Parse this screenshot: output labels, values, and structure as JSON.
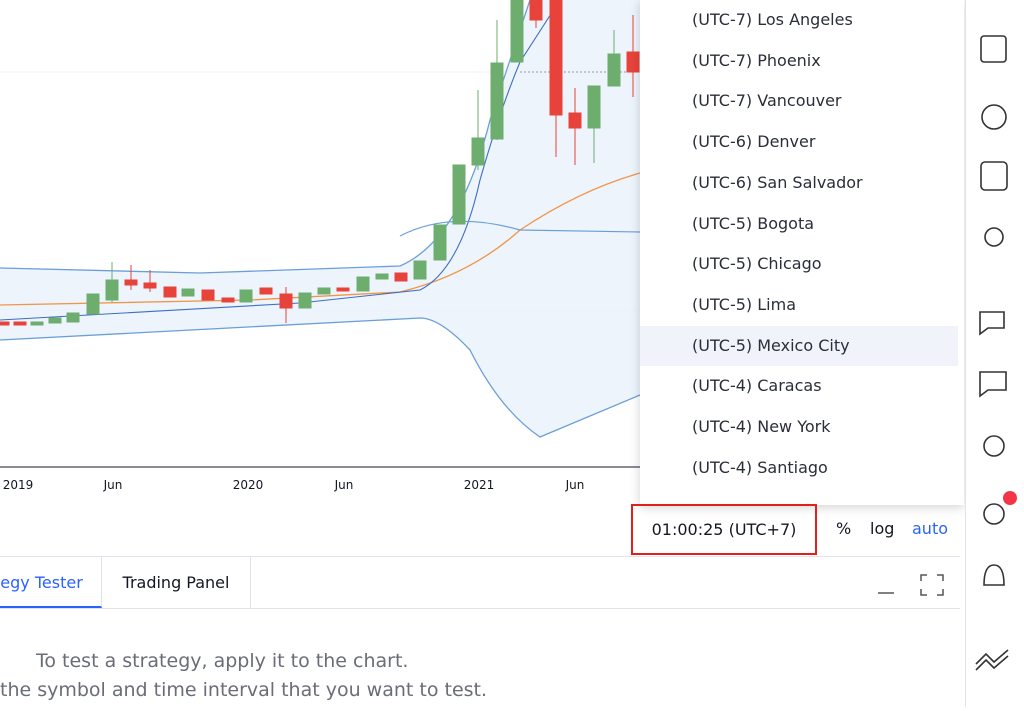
{
  "chart": {
    "x_labels": [
      "2019",
      "Jun",
      "2020",
      "Jun",
      "2021",
      "Jun"
    ]
  },
  "timezone_menu": {
    "items": [
      "(UTC-7) Los Angeles",
      "(UTC-7) Phoenix",
      "(UTC-7) Vancouver",
      "(UTC-6) Denver",
      "(UTC-6) San Salvador",
      "(UTC-5) Bogota",
      "(UTC-5) Chicago",
      "(UTC-5) Lima",
      "(UTC-5) Mexico City",
      "(UTC-4) Caracas",
      "(UTC-4) New York",
      "(UTC-4) Santiago"
    ],
    "selected": 8
  },
  "status_bar": {
    "clock": "01:00:25 (UTC+7)",
    "percent": "%",
    "log": "log",
    "auto": "auto"
  },
  "bottom_panel": {
    "tabs": [
      "Strategy Tester",
      "Trading Panel"
    ],
    "message": [
      "To test a strategy, apply it to the chart.",
      "the symbol and time interval that you want to test."
    ]
  }
}
